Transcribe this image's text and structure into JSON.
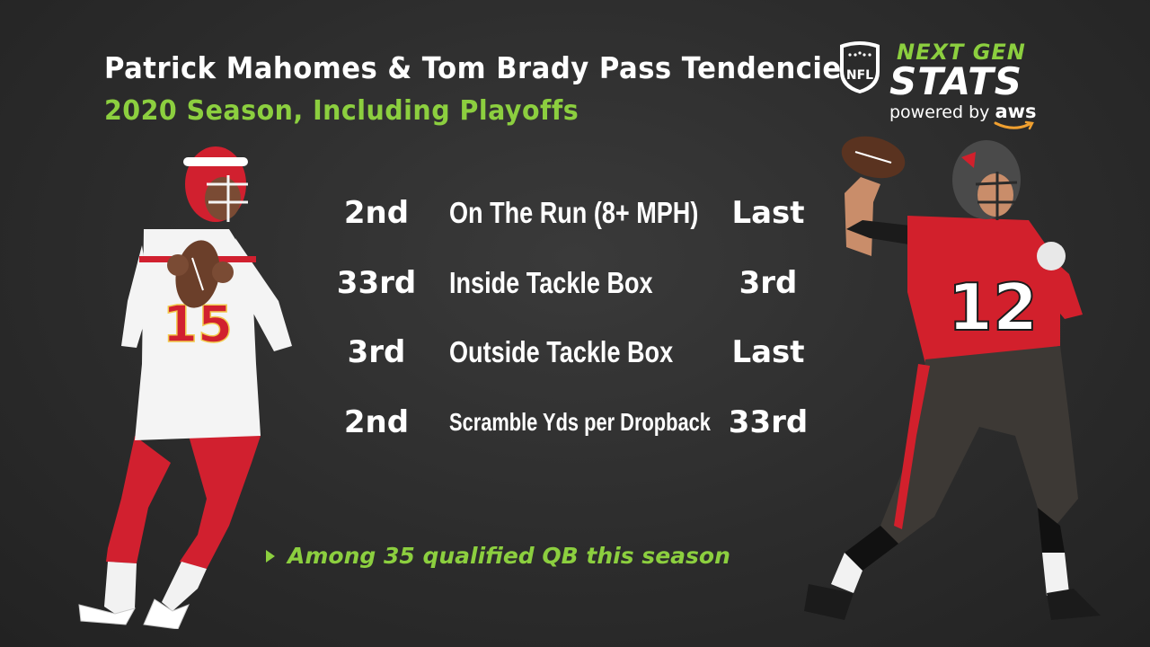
{
  "header": {
    "title": "Patrick Mahomes & Tom Brady Pass Tendencies",
    "subtitle": "2020 Season, Including Playoffs"
  },
  "logo": {
    "league_badge": "NFL",
    "brand_top": "NEXT GEN",
    "brand_main": "STATS",
    "powered_by": "powered by",
    "partner": "aws"
  },
  "rows": [
    {
      "left_rank": "2nd",
      "metric": "On The Run (8+ MPH)",
      "right_rank": "Last"
    },
    {
      "left_rank": "33rd",
      "metric": "Inside Tackle Box",
      "right_rank": "3rd"
    },
    {
      "left_rank": "3rd",
      "metric": "Outside Tackle Box",
      "right_rank": "Last"
    },
    {
      "left_rank": "2nd",
      "metric": "Scramble Yds per Dropback",
      "right_rank": "33rd"
    }
  ],
  "footnote": "Among 35 qualified QB this season",
  "players": {
    "left": {
      "jersey_number": "15",
      "icon": "quarterback-red-white-figure"
    },
    "right": {
      "jersey_number": "12",
      "icon": "quarterback-red-pewter-figure"
    }
  },
  "colors": {
    "accent_green": "#8ccf3f",
    "background": "#2c2c2c",
    "chiefs_red": "#d1202f",
    "bucs_red": "#d2202c",
    "bucs_pewter": "#3d3935"
  }
}
